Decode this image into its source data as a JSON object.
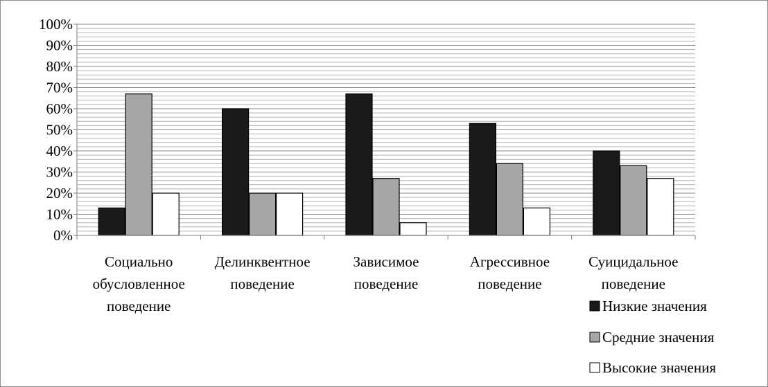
{
  "chart_data": {
    "type": "bar",
    "categories": [
      [
        "Социально",
        "обусловленное",
        "поведение"
      ],
      [
        "Делинквентное",
        "поведение"
      ],
      [
        "Зависимое",
        "поведение"
      ],
      [
        "Агрессивное",
        "поведение"
      ],
      [
        "Суицидальное",
        "поведение"
      ]
    ],
    "series": [
      {
        "name": "Низкие значения",
        "color": "#1a1a1a",
        "values": [
          13,
          60,
          67,
          53,
          40
        ]
      },
      {
        "name": "Средние значения",
        "color": "#a6a6a6",
        "values": [
          67,
          20,
          27,
          34,
          33
        ]
      },
      {
        "name": "Высокие значения",
        "color": "#ffffff",
        "values": [
          20,
          20,
          6,
          13,
          27
        ]
      }
    ],
    "ylim": [
      0,
      100
    ],
    "yticks": [
      "0%",
      "10%",
      "20%",
      "30%",
      "40%",
      "50%",
      "60%",
      "70%",
      "80%",
      "90%",
      "100%"
    ],
    "grid": true,
    "legend_position": "bottom-right"
  }
}
